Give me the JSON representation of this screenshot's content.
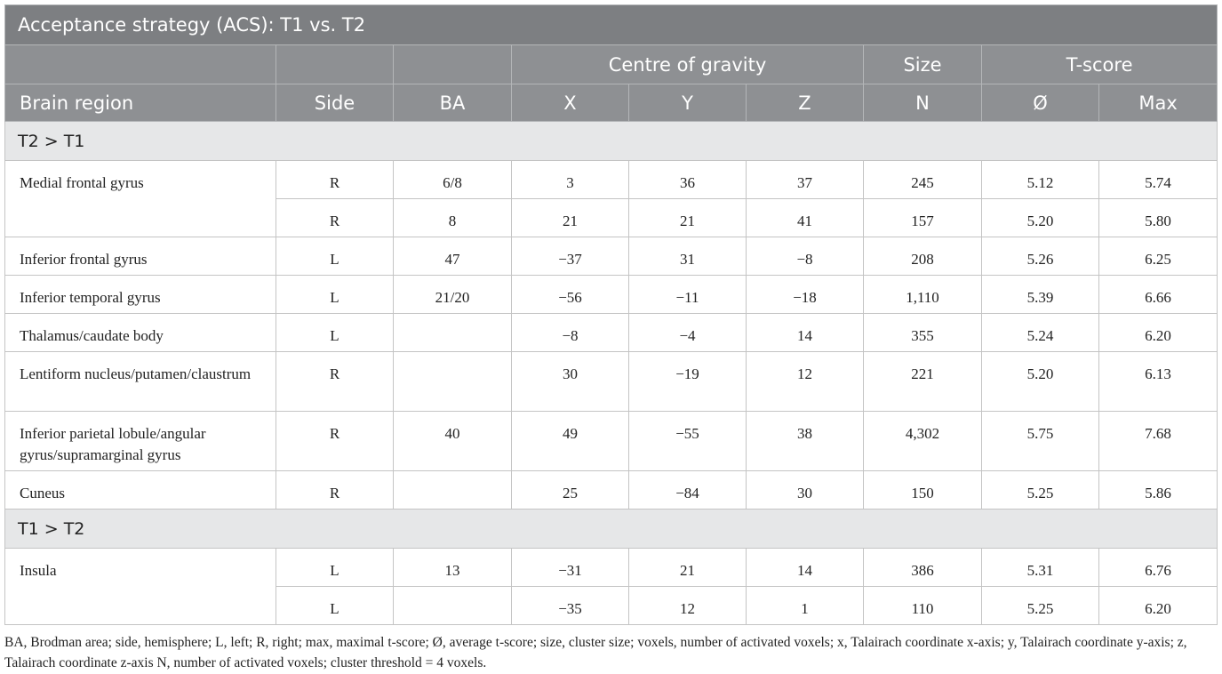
{
  "title": "Acceptance strategy (ACS): T1 vs. T2",
  "header": {
    "groups": [
      "Centre of gravity",
      "Size",
      "T-score"
    ],
    "columns": [
      "Brain region",
      "Side",
      "BA",
      "X",
      "Y",
      "Z",
      "N",
      "Ø",
      "Max"
    ]
  },
  "sections": [
    {
      "label": "T2 > T1",
      "groups": [
        {
          "region": "Medial frontal gyrus",
          "rows": [
            {
              "side": "R",
              "ba": "6/8",
              "x": "3",
              "y": "36",
              "z": "37",
              "n": "245",
              "mean": "5.12",
              "max": "5.74"
            },
            {
              "side": "R",
              "ba": "8",
              "x": "21",
              "y": "21",
              "z": "41",
              "n": "157",
              "mean": "5.20",
              "max": "5.80"
            }
          ]
        },
        {
          "region": "Inferior frontal gyrus",
          "rows": [
            {
              "side": "L",
              "ba": "47",
              "x": "−37",
              "y": "31",
              "z": "−8",
              "n": "208",
              "mean": "5.26",
              "max": "6.25"
            }
          ]
        },
        {
          "region": "Inferior temporal gyrus",
          "rows": [
            {
              "side": "L",
              "ba": "21/20",
              "x": "−56",
              "y": "−11",
              "z": "−18",
              "n": "1,110",
              "mean": "5.39",
              "max": "6.66"
            }
          ]
        },
        {
          "region": "Thalamus/caudate body",
          "rows": [
            {
              "side": "L",
              "x": "−8",
              "y": "−4",
              "z": "14",
              "n": "355",
              "mean": "5.24",
              "max": "6.20"
            }
          ]
        },
        {
          "region": "Lentiform nucleus/putamen/claustrum",
          "rows": [
            {
              "side": "R",
              "x": "30",
              "y": "−19",
              "z": "12",
              "n": "221",
              "mean": "5.20",
              "max": "6.13"
            }
          ]
        },
        {
          "region": "Inferior parietal lobule/angular gyrus/supramarginal gyrus",
          "rows": [
            {
              "side": "R",
              "ba": "40",
              "x": "49",
              "y": "−55",
              "z": "38",
              "n": "4,302",
              "mean": "5.75",
              "max": "7.68"
            }
          ]
        },
        {
          "region": "Cuneus",
          "rows": [
            {
              "side": "R",
              "x": "25",
              "y": "−84",
              "z": "30",
              "n": "150",
              "mean": "5.25",
              "max": "5.86"
            }
          ]
        }
      ]
    },
    {
      "label": "T1 > T2",
      "groups": [
        {
          "region": "Insula",
          "rows": [
            {
              "side": "L",
              "ba": "13",
              "x": "−31",
              "y": "21",
              "z": "14",
              "n": "386",
              "mean": "5.31",
              "max": "6.76"
            },
            {
              "side": "L",
              "x": "−35",
              "y": "12",
              "z": "1",
              "n": "110",
              "mean": "5.25",
              "max": "6.20"
            }
          ]
        }
      ]
    }
  ],
  "footnote": "BA, Brodman area; side, hemisphere; L, left; R, right; max, maximal t-score; Ø, average t-score; size, cluster size; voxels, number of activated voxels; x, Talairach coordinate x-axis; y, Talairach coordinate y-axis; z, Talairach coordinate z-axis N, number of activated voxels; cluster threshold = 4 voxels."
}
